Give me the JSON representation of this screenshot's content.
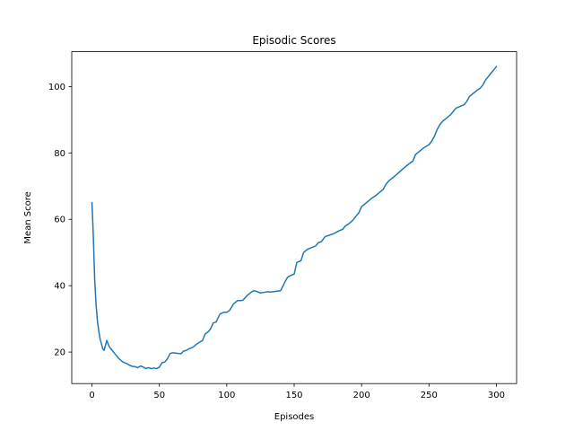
{
  "chart_data": {
    "type": "line",
    "title": "Episodic Scores",
    "xlabel": "Episodes",
    "ylabel": "Mean Score",
    "xlim": [
      -15,
      315
    ],
    "ylim": [
      10.5,
      110.5
    ],
    "xticks": [
      0,
      50,
      100,
      150,
      200,
      250,
      300
    ],
    "yticks": [
      20,
      40,
      60,
      80,
      100
    ],
    "grid": false,
    "legend": "none",
    "series": [
      {
        "color": "#1f77b4",
        "x": [
          0,
          1,
          2,
          3,
          4,
          5,
          6,
          7,
          8,
          9,
          10,
          11,
          12,
          13,
          15,
          17,
          20,
          23,
          26,
          28,
          30,
          32,
          34,
          36,
          38,
          40,
          42,
          44,
          46,
          48,
          50,
          52,
          54,
          56,
          58,
          60,
          62,
          64,
          66,
          68,
          70,
          72,
          75,
          78,
          80,
          82,
          84,
          86,
          88,
          90,
          92,
          95,
          98,
          100,
          102,
          105,
          108,
          110,
          112,
          115,
          118,
          120,
          122,
          125,
          128,
          130,
          133,
          136,
          140,
          143,
          145,
          147,
          150,
          152,
          155,
          157,
          160,
          163,
          166,
          168,
          170,
          173,
          176,
          180,
          183,
          186,
          188,
          190,
          193,
          196,
          198,
          200,
          202,
          205,
          208,
          210,
          213,
          216,
          218,
          220,
          223,
          226,
          230,
          233,
          236,
          238,
          240,
          243,
          246,
          250,
          252,
          254,
          256,
          258,
          260,
          263,
          266,
          268,
          270,
          273,
          276,
          278,
          280,
          283,
          286,
          288,
          290,
          292,
          294,
          296,
          298,
          300
        ],
        "y": [
          65.0,
          55.0,
          42.0,
          34.5,
          29.5,
          26.5,
          24.0,
          22.5,
          21.0,
          20.5,
          22.0,
          23.5,
          22.5,
          21.5,
          20.5,
          19.5,
          18.0,
          17.0,
          16.5,
          16.0,
          15.7,
          15.6,
          15.3,
          15.8,
          15.5,
          15.0,
          15.3,
          15.0,
          15.2,
          15.0,
          15.5,
          16.8,
          17.0,
          18.0,
          19.6,
          19.8,
          19.7,
          19.6,
          19.5,
          20.3,
          20.5,
          21.0,
          21.5,
          22.5,
          23.0,
          23.5,
          25.5,
          26.0,
          27.0,
          28.8,
          29.0,
          31.5,
          32.0,
          32.0,
          32.5,
          34.5,
          35.5,
          35.5,
          35.6,
          37.0,
          38.0,
          38.5,
          38.3,
          37.8,
          38.0,
          38.2,
          38.1,
          38.3,
          38.5,
          41.0,
          42.5,
          43.0,
          43.5,
          47.0,
          47.5,
          50.0,
          51.0,
          51.5,
          52.0,
          53.0,
          53.2,
          54.8,
          55.2,
          55.8,
          56.5,
          57.0,
          58.0,
          58.5,
          59.5,
          61.0,
          62.0,
          63.8,
          64.5,
          65.5,
          66.5,
          67.0,
          68.0,
          69.0,
          70.5,
          71.5,
          72.5,
          73.5,
          75.0,
          76.0,
          77.0,
          77.5,
          79.5,
          80.5,
          81.5,
          82.5,
          83.5,
          85.0,
          87.0,
          88.5,
          89.5,
          90.5,
          91.5,
          92.5,
          93.5,
          94.0,
          94.5,
          95.5,
          97.0,
          98.0,
          99.0,
          99.5,
          100.5,
          102.0,
          103.0,
          104.0,
          105.0,
          106.0
        ]
      }
    ]
  }
}
